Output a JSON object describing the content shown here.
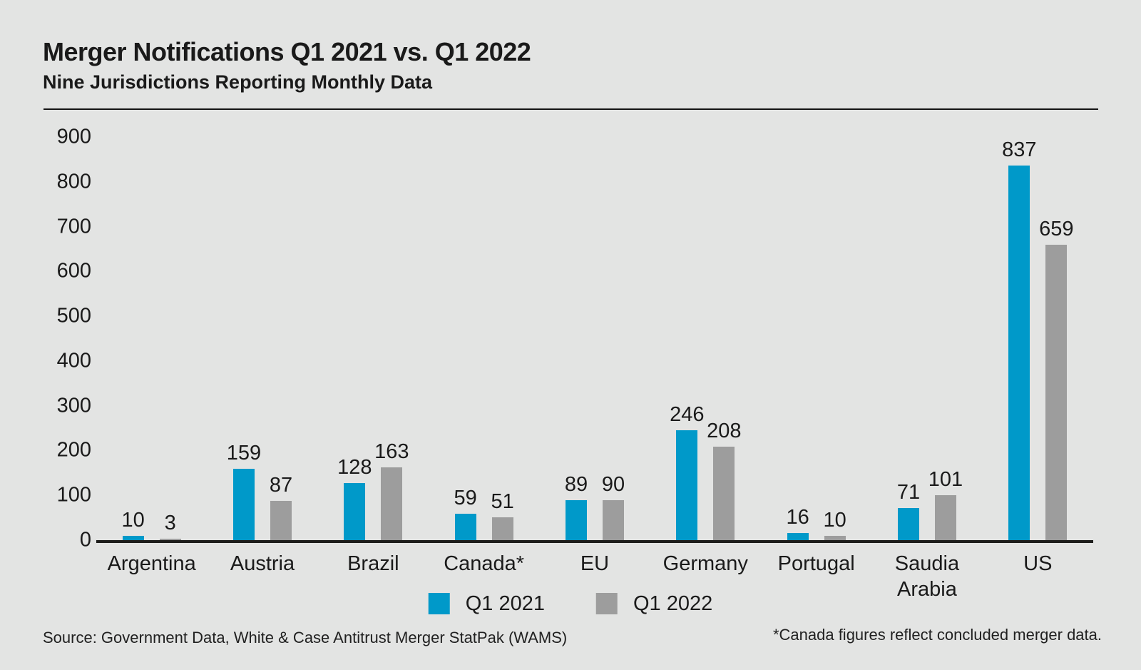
{
  "page": {
    "background_color": "#e3e4e3"
  },
  "header": {
    "title": "Merger Notifications Q1 2021 vs. Q1 2022",
    "subtitle": "Nine Jurisdictions Reporting Monthly Data"
  },
  "chart_data": {
    "type": "bar",
    "title": "Merger Notifications Q1 2021 vs. Q1 2022",
    "subtitle": "Nine Jurisdictions Reporting Monthly Data",
    "categories": [
      "Argentina",
      "Austria",
      "Brazil",
      "Canada*",
      "EU",
      "Germany",
      "Portugal",
      "Saudia Arabia",
      "US"
    ],
    "series": [
      {
        "name": "Q1 2021",
        "color": "#0099c9",
        "values": [
          10,
          159,
          128,
          59,
          89,
          246,
          16,
          71,
          837
        ]
      },
      {
        "name": "Q1 2022",
        "color": "#9d9d9d",
        "values": [
          3,
          87,
          163,
          51,
          90,
          208,
          10,
          101,
          659
        ]
      }
    ],
    "ylim": [
      0,
      900
    ],
    "ytick_step": 100,
    "yticks": [
      0,
      100,
      200,
      300,
      400,
      500,
      600,
      700,
      800,
      900
    ],
    "grid": false,
    "value_labels": true,
    "legend_position": "bottom-center",
    "axis_line_color": "#1d1d1b",
    "text_color": "#1a1a1a"
  },
  "footer": {
    "source": "Source: Government Data, White & Case Antitrust Merger StatPak (WAMS)",
    "footnote": "*Canada figures reflect concluded merger data."
  }
}
